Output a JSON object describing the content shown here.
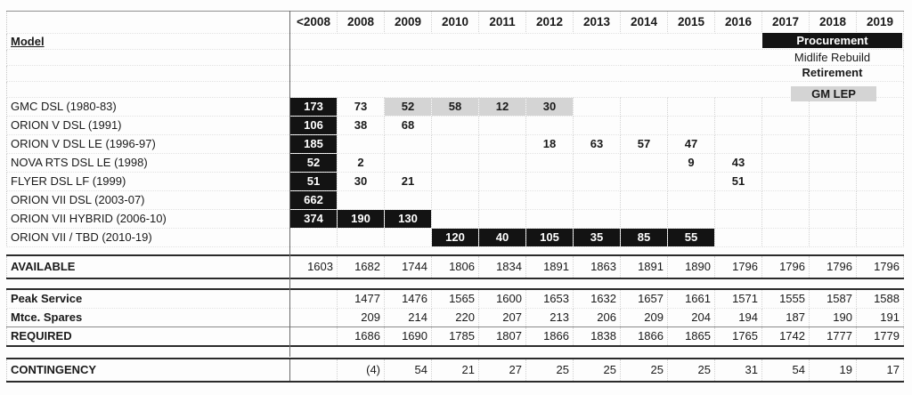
{
  "header": {
    "model_label": "Model",
    "years": [
      "<2008",
      "2008",
      "2009",
      "2010",
      "2011",
      "2012",
      "2013",
      "2014",
      "2015",
      "2016",
      "2017",
      "2018",
      "2019"
    ]
  },
  "legend": {
    "procurement": "Procurement",
    "midlife_rebuild": "Midlife Rebuild",
    "retirement": "Retirement",
    "gm_lep": "GM LEP"
  },
  "models": [
    {
      "name": "GMC DSL (1980-83)",
      "values": [
        "173",
        "73",
        "52",
        "58",
        "12",
        "30",
        "",
        "",
        "",
        "",
        "",
        "",
        ""
      ]
    },
    {
      "name": "ORION V DSL (1991)",
      "values": [
        "106",
        "38",
        "68",
        "",
        "",
        "",
        "",
        "",
        "",
        "",
        "",
        "",
        ""
      ]
    },
    {
      "name": "ORION V DSL LE (1996-97)",
      "values": [
        "185",
        "",
        "",
        "",
        "",
        "18",
        "63",
        "57",
        "47",
        "",
        "",
        "",
        ""
      ]
    },
    {
      "name": "NOVA RTS DSL LE (1998)",
      "values": [
        "52",
        "2",
        "",
        "",
        "",
        "",
        "",
        "",
        "9",
        "43",
        "",
        "",
        ""
      ]
    },
    {
      "name": "FLYER DSL LF (1999)",
      "values": [
        "51",
        "30",
        "21",
        "",
        "",
        "",
        "",
        "",
        "",
        "51",
        "",
        "",
        ""
      ]
    },
    {
      "name": "ORION VII DSL (2003-07)",
      "values": [
        "662",
        "",
        "",
        "",
        "",
        "",
        "",
        "",
        "",
        "",
        "",
        "",
        ""
      ]
    },
    {
      "name": "ORION VII HYBRID (2006-10)",
      "values": [
        "374",
        "190",
        "130",
        "",
        "",
        "",
        "",
        "",
        "",
        "",
        "",
        "",
        ""
      ]
    },
    {
      "name": "ORION VII / TBD (2010-19)",
      "values": [
        "",
        "",
        "",
        "120",
        "40",
        "105",
        "35",
        "85",
        "55",
        "",
        "",
        "",
        ""
      ]
    }
  ],
  "available": {
    "label": "AVAILABLE",
    "values": [
      "1603",
      "1682",
      "1744",
      "1806",
      "1834",
      "1891",
      "1863",
      "1891",
      "1890",
      "1796",
      "1796",
      "1796",
      "1796"
    ]
  },
  "summary": [
    {
      "label": "Peak Service",
      "values": [
        "",
        "1477",
        "1476",
        "1565",
        "1600",
        "1653",
        "1632",
        "1657",
        "1661",
        "1571",
        "1555",
        "1587",
        "1588"
      ]
    },
    {
      "label": "Mtce. Spares",
      "values": [
        "",
        "209",
        "214",
        "220",
        "207",
        "213",
        "206",
        "209",
        "204",
        "194",
        "187",
        "190",
        "191"
      ]
    },
    {
      "label": "REQUIRED",
      "values": [
        "",
        "1686",
        "1690",
        "1785",
        "1807",
        "1866",
        "1838",
        "1866",
        "1865",
        "1765",
        "1742",
        "1777",
        "1779"
      ]
    }
  ],
  "contingency": {
    "label": "CONTINGENCY",
    "values": [
      "",
      "(4)",
      "54",
      "21",
      "27",
      "25",
      "25",
      "25",
      "25",
      "31",
      "54",
      "19",
      "17"
    ]
  },
  "colors": {
    "procurement_bg": "#131313",
    "procurement_text": "#ffffff",
    "gm_lep_bg": "#d4d4d4",
    "grid_dotted": "#d2d2d2",
    "rule_dark": "#2b2b2b"
  }
}
